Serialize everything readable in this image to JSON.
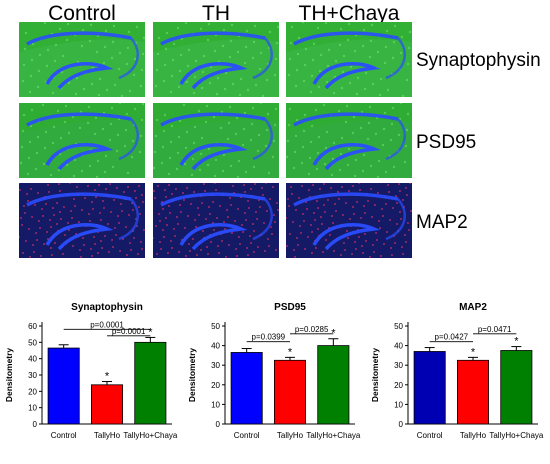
{
  "micrographs": {
    "columns": [
      "Control",
      "TH",
      "TH+Chaya"
    ],
    "rows": [
      "Synaptophysin",
      "PSD95",
      "MAP2"
    ],
    "row_colors": {
      "Synaptophysin": "#3fcf3a",
      "PSD95": "#38c436",
      "MAP2": "#d0306a"
    },
    "stain_background": "#0d1f6e",
    "nuclear_stain": "#2a4dff"
  },
  "chart_data": [
    {
      "type": "bar",
      "title": "Synaptophysin",
      "ylabel": "Densitometry",
      "categories": [
        "Control",
        "TallyHo",
        "TallyHo+Chaya"
      ],
      "values": [
        46.5,
        24,
        50
      ],
      "errors": [
        2,
        2,
        3
      ],
      "colors": [
        "#0000ff",
        "#ff0000",
        "#008000"
      ],
      "ylim": [
        0,
        60
      ],
      "yticks": [
        "0",
        "10",
        "20",
        "30",
        "40",
        "50",
        "60"
      ],
      "yticks_num": [
        0,
        10,
        20,
        30,
        40,
        50,
        60
      ],
      "significance": [
        {
          "from": 0,
          "to": 2,
          "label": "p=0.0001",
          "level": 58
        },
        {
          "from": 1,
          "to": 2,
          "label": "p=0.0001",
          "level": 54
        }
      ],
      "stars": [
        1,
        2
      ]
    },
    {
      "type": "bar",
      "title": "PSD95",
      "ylabel": "Densitometry",
      "categories": [
        "Control",
        "TallyHo",
        "TallyHo+Chaya"
      ],
      "values": [
        36.5,
        32.5,
        40
      ],
      "errors": [
        2,
        1.5,
        3.5
      ],
      "colors": [
        "#0000ff",
        "#ff0000",
        "#008000"
      ],
      "ylim": [
        0,
        50
      ],
      "yticks": [
        "0",
        "10",
        "20",
        "30",
        "40",
        "50"
      ],
      "yticks_num": [
        0,
        10,
        20,
        30,
        40,
        50
      ],
      "significance": [
        {
          "from": 0,
          "to": 1,
          "label": "p=0.0399",
          "level": 42
        },
        {
          "from": 1,
          "to": 2,
          "label": "p=0.0285",
          "level": 46
        }
      ],
      "stars": [
        1,
        2
      ]
    },
    {
      "type": "bar",
      "title": "MAP2",
      "ylabel": "Densitometry",
      "categories": [
        "Control",
        "TallyHo",
        "TallyHo+Chaya"
      ],
      "values": [
        37,
        32.5,
        37.5
      ],
      "errors": [
        2,
        1.5,
        2
      ],
      "colors": [
        "#0000b3",
        "#ff0000",
        "#008000"
      ],
      "ylim": [
        0,
        50
      ],
      "yticks": [
        "0",
        "10",
        "20",
        "30",
        "40",
        "50"
      ],
      "yticks_num": [
        0,
        10,
        20,
        30,
        40,
        50
      ],
      "significance": [
        {
          "from": 0,
          "to": 1,
          "label": "p=0.0427",
          "level": 42
        },
        {
          "from": 1,
          "to": 2,
          "label": "p=0.0471",
          "level": 46
        }
      ],
      "stars": [
        1,
        2
      ]
    }
  ]
}
